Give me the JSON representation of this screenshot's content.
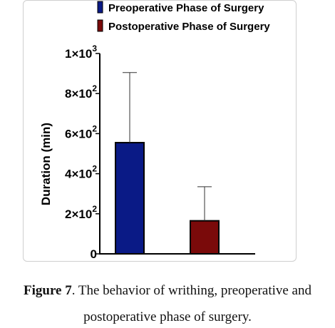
{
  "chart_data": {
    "type": "bar",
    "categories": [
      "Preoperative Phase of Surgery",
      "Postoperative Phase of Surgery"
    ],
    "series": [
      {
        "name": "Preoperative Phase of Surgery",
        "value": 555,
        "error": 350,
        "color": "#0a1a86"
      },
      {
        "name": "Postoperative Phase of Surgery",
        "value": 165,
        "error": 170,
        "color": "#7a0a0a"
      }
    ],
    "ylabel": "Duration (min)",
    "ylim": [
      0,
      1000
    ],
    "yticks": [
      {
        "value": 0,
        "mantissa": "0",
        "exp": ""
      },
      {
        "value": 200,
        "mantissa": "2×10",
        "exp": "2"
      },
      {
        "value": 400,
        "mantissa": "4×10",
        "exp": "2"
      },
      {
        "value": 600,
        "mantissa": "6×10",
        "exp": "2"
      },
      {
        "value": 800,
        "mantissa": "8×10",
        "exp": "2"
      },
      {
        "value": 1000,
        "mantissa": "1×10",
        "exp": "3"
      }
    ],
    "legend_position": "top-right",
    "grid": false
  },
  "caption": {
    "figure_label": "Figure 7",
    "text_line1": ". The behavior of writhing, preoperative and",
    "text_line2": "postoperative phase of surgery."
  }
}
